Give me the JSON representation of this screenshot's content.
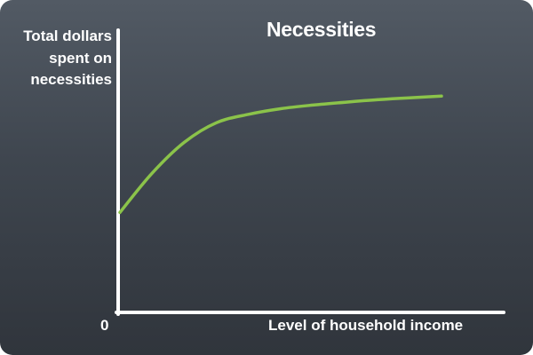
{
  "chart_data": {
    "type": "line",
    "title": "Necessities",
    "ylabel_lines": [
      "Total dollars",
      "spent on",
      "necessities"
    ],
    "xlabel": "Level of household income",
    "origin_label": "0",
    "grid": false,
    "legend": "none",
    "colors": {
      "line": "#8bc34a",
      "axes": "#ffffff"
    },
    "xlim": [
      0,
      100
    ],
    "ylim": [
      0,
      100
    ],
    "series": [
      {
        "x": [
          0,
          10,
          20,
          30,
          40,
          50,
          60,
          70,
          80,
          90,
          100
        ],
        "values": [
          35,
          49,
          60,
          67,
          70,
          72,
          73.3,
          74.3,
          75.2,
          75.9,
          76.5
        ]
      }
    ]
  }
}
